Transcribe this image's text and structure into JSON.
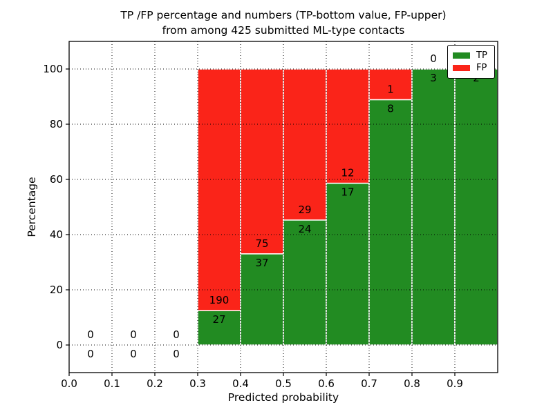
{
  "window": {
    "background": "#ffffff"
  },
  "chart_data": {
    "type": "bar",
    "stacked": true,
    "normalized_to_percent": true,
    "title": "TP /FP percentage and numbers (TP-bottom value, FP-upper)\nfrom among 425 submitted ML-type contacts",
    "title_line1": "TP /FP percentage and numbers (TP-bottom value, FP-upper)",
    "title_line2": "from among 425 submitted ML-type contacts",
    "xlabel": "Predicted probability",
    "ylabel": "Percentage",
    "total_submitted": 425,
    "bin_width": 0.1,
    "categories": [
      0.0,
      0.1,
      0.2,
      0.3,
      0.4,
      0.5,
      0.6,
      0.7,
      0.8,
      0.9
    ],
    "series": [
      {
        "name": "TP",
        "color": "#228b22",
        "values": [
          0,
          0,
          0,
          27,
          37,
          24,
          17,
          8,
          3,
          2
        ]
      },
      {
        "name": "FP",
        "color": "#fa2419",
        "values": [
          0,
          0,
          0,
          190,
          75,
          29,
          12,
          1,
          0,
          0
        ]
      }
    ],
    "tp_percent_heights": [
      0,
      0,
      0,
      12.4,
      33.0,
      45.3,
      58.6,
      88.9,
      100,
      100
    ],
    "xlim": [
      0.0,
      1.0
    ],
    "ylim": [
      -10,
      110
    ],
    "xticks": [
      0.0,
      0.1,
      0.2,
      0.3,
      0.4,
      0.5,
      0.6,
      0.7,
      0.8,
      0.9
    ],
    "xtick_labels": [
      "0.0",
      "0.1",
      "0.2",
      "0.3",
      "0.4",
      "0.5",
      "0.6",
      "0.7",
      "0.8",
      "0.9"
    ],
    "yticks": [
      0,
      20,
      40,
      60,
      80,
      100
    ],
    "ytick_labels": [
      "0",
      "20",
      "40",
      "60",
      "80",
      "100"
    ],
    "grid": "dotted",
    "axis_color": "#000000",
    "text_color": "#000000",
    "bar_edge_color": "#ffffff",
    "legend": {
      "position": "upper right",
      "entries": [
        {
          "label": "TP",
          "color": "#228b22"
        },
        {
          "label": "FP",
          "color": "#fa2419"
        }
      ]
    }
  }
}
